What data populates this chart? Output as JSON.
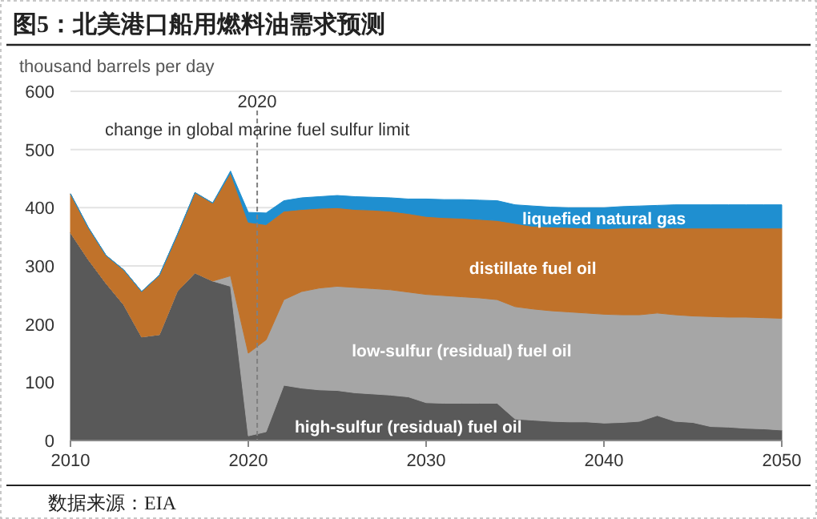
{
  "chart_data": {
    "type": "area",
    "stacked": true,
    "title": "图5：北美港口船用燃料油需求预测",
    "ylabel": "thousand barrels per day",
    "x": [
      2010,
      2011,
      2012,
      2013,
      2014,
      2015,
      2016,
      2017,
      2018,
      2019,
      2020,
      2021,
      2022,
      2023,
      2024,
      2025,
      2026,
      2027,
      2028,
      2029,
      2030,
      2031,
      2032,
      2033,
      2034,
      2035,
      2036,
      2037,
      2038,
      2039,
      2040,
      2041,
      2042,
      2043,
      2044,
      2045,
      2046,
      2047,
      2048,
      2049,
      2050
    ],
    "xlim": [
      2010,
      2050
    ],
    "xticks": [
      2010,
      2020,
      2030,
      2040,
      2050
    ],
    "ylim": [
      0,
      600
    ],
    "yticks": [
      0,
      100,
      200,
      300,
      400,
      500,
      600
    ],
    "grid": "y",
    "series": [
      {
        "name": "high-sulfur (residual) fuel oil",
        "color": "#595959",
        "values": [
          357,
          311,
          270,
          233,
          178,
          182,
          256,
          288,
          274,
          265,
          8,
          15,
          95,
          90,
          87,
          86,
          82,
          80,
          78,
          75,
          65,
          64,
          64,
          64,
          64,
          37,
          35,
          33,
          32,
          32,
          30,
          31,
          33,
          43,
          33,
          31,
          24,
          23,
          21,
          20,
          18
        ]
      },
      {
        "name": "low-sulfur (residual) fuel oil",
        "color": "#a6a6a6",
        "values": [
          0,
          0,
          0,
          0,
          0,
          0,
          0,
          0,
          0,
          18,
          142,
          158,
          147,
          166,
          175,
          179,
          181,
          181,
          181,
          180,
          186,
          185,
          183,
          181,
          178,
          193,
          191,
          190,
          189,
          187,
          187,
          185,
          183,
          176,
          183,
          183,
          189,
          189,
          191,
          191,
          192
        ]
      },
      {
        "name": "distillate fuel oil",
        "color": "#c0722a",
        "values": [
          67,
          55,
          48,
          60,
          78,
          102,
          97,
          138,
          134,
          177,
          225,
          198,
          152,
          141,
          137,
          135,
          134,
          135,
          135,
          135,
          134,
          134,
          135,
          135,
          136,
          143,
          142,
          144,
          145,
          146,
          147,
          149,
          149,
          146,
          149,
          151,
          152,
          153,
          153,
          154,
          155
        ]
      },
      {
        "name": "liquefied natural gas",
        "color": "#1f8fd0",
        "values": [
          0,
          0,
          0,
          0,
          0,
          0,
          0,
          0,
          0,
          3,
          17,
          20,
          18,
          20,
          20,
          21,
          22,
          22,
          23,
          25,
          30,
          31,
          32,
          33,
          34,
          32,
          35,
          34,
          34,
          35,
          36,
          37,
          38,
          39,
          40,
          40,
          40,
          40,
          40,
          40,
          40
        ]
      }
    ],
    "ref_lines": [
      {
        "axis": "x",
        "value": 2020.5,
        "label": "2020",
        "line_style": "dashed",
        "color": "#808080"
      }
    ],
    "annotations": [
      {
        "text": "change in global marine fuel sulfur limit",
        "x": 2020.5,
        "y": 535
      },
      "数据来源：EIA"
    ]
  }
}
